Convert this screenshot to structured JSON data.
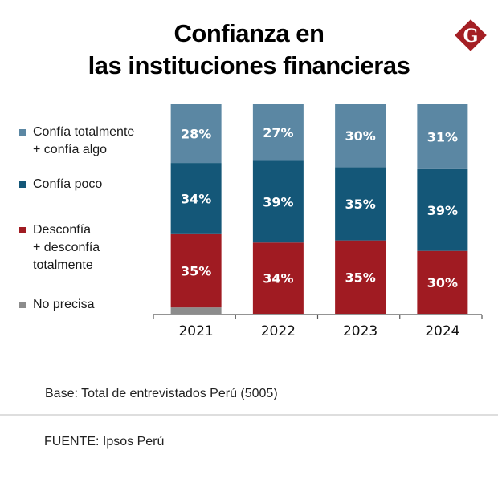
{
  "title_lines": [
    "Confianza en",
    "las instituciones financieras"
  ],
  "logo": {
    "icon": "diario-gestion-g-logo",
    "letter": "G",
    "color": "#a41f24"
  },
  "chart_data": {
    "type": "bar",
    "stacked": true,
    "title": "Confianza en las instituciones financieras",
    "xlabel": "",
    "ylabel": "",
    "ylim": [
      0,
      100
    ],
    "grid": false,
    "legend_position": "left",
    "categories": [
      "2021",
      "2022",
      "2023",
      "2024"
    ],
    "series": [
      {
        "name": "No precisa",
        "color": "#8c8c8c",
        "values": [
          3,
          0,
          0,
          0
        ],
        "labels": [
          "",
          "",
          "",
          ""
        ]
      },
      {
        "name": "Desconfía + desconfía totalmente",
        "color": "#a01b22",
        "values": [
          35,
          34,
          35,
          30
        ],
        "labels": [
          "35%",
          "34%",
          "35%",
          "30%"
        ]
      },
      {
        "name": "Confía poco",
        "color": "#145778",
        "values": [
          34,
          39,
          35,
          39
        ],
        "labels": [
          "34%",
          "39%",
          "35%",
          "39%"
        ]
      },
      {
        "name": "Confía totalmente + confía algo",
        "color": "#5b87a3",
        "values": [
          28,
          27,
          30,
          31
        ],
        "labels": [
          "28%",
          "27%",
          "30%",
          "31%"
        ]
      }
    ]
  },
  "legend": [
    {
      "label": "Confía totalmente\n+ confía algo",
      "color": "#5b87a3"
    },
    {
      "label": "Confía poco",
      "color": "#145778"
    },
    {
      "label": "Desconfía\n+ desconfía\ntotalmente",
      "color": "#a01b22"
    },
    {
      "label": "No precisa",
      "color": "#8c8c8c"
    }
  ],
  "footer": {
    "base": "Base: Total de entrevistados Perú (5005)",
    "source": "FUENTE: Ipsos Perú"
  }
}
